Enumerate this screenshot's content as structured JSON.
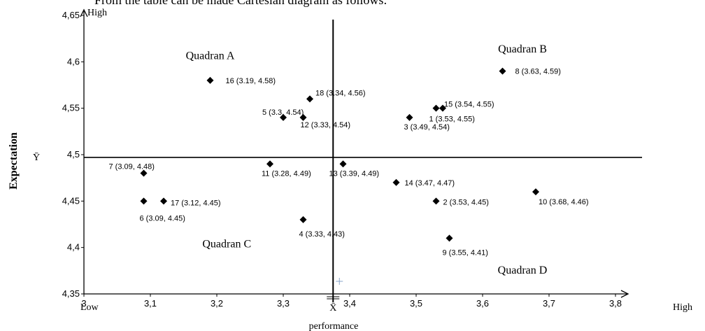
{
  "intro_text": "From the table can be made Cartesian diagram as follows:",
  "chart_data": {
    "type": "scatter",
    "title": "",
    "xlabel": "performance",
    "ylabel": "Expectation",
    "xlim": [
      3,
      3.8
    ],
    "ylim": [
      4.35,
      4.65
    ],
    "x_ticks": [
      "3",
      "3,1",
      "3,2",
      "3,3",
      "3,4",
      "3,5",
      "3,6",
      "3,7",
      "3,8"
    ],
    "y_ticks": [
      "4,35",
      "4,4",
      "4,45",
      "4,5",
      "4,55",
      "4,6",
      "4,65"
    ],
    "x_low_label": "Low",
    "x_high_label": "High",
    "y_high_label": "High",
    "x_mean_symbol": "X̄",
    "y_mean_symbol": "Ȳ",
    "mean_x": 3.375,
    "mean_y": 4.497,
    "quadrants": [
      {
        "label": "Quadran A",
        "x": 3.19,
        "y": 4.603
      },
      {
        "label": "Quadran B",
        "x": 3.66,
        "y": 4.61
      },
      {
        "label": "Quadran C",
        "x": 3.215,
        "y": 4.4
      },
      {
        "label": "Quadran D",
        "x": 3.66,
        "y": 4.372
      }
    ],
    "points": [
      {
        "id": "1",
        "x": 3.53,
        "y": 4.55,
        "label": "1 (3.53, 4.55)"
      },
      {
        "id": "2",
        "x": 3.53,
        "y": 4.45,
        "label": "2 (3.53, 4.45)"
      },
      {
        "id": "3",
        "x": 3.49,
        "y": 4.54,
        "label": "3 (3.49, 4.54)"
      },
      {
        "id": "4",
        "x": 3.33,
        "y": 4.43,
        "label": "4 (3.33, 4.43)"
      },
      {
        "id": "5",
        "x": 3.3,
        "y": 4.54,
        "label": "5 (3.3, 4.54)"
      },
      {
        "id": "6",
        "x": 3.09,
        "y": 4.45,
        "label": "6 (3.09, 4.45)"
      },
      {
        "id": "7",
        "x": 3.09,
        "y": 4.48,
        "label": "7 (3.09, 4.48)"
      },
      {
        "id": "8",
        "x": 3.63,
        "y": 4.59,
        "label": "8 (3.63, 4.59)"
      },
      {
        "id": "9",
        "x": 3.55,
        "y": 4.41,
        "label": "9 (3.55, 4.41)"
      },
      {
        "id": "10",
        "x": 3.68,
        "y": 4.46,
        "label": "10 (3.68, 4.46)"
      },
      {
        "id": "11",
        "x": 3.28,
        "y": 4.49,
        "label": "11 (3.28, 4.49)"
      },
      {
        "id": "12",
        "x": 3.33,
        "y": 4.54,
        "label": "12 (3.33, 4.54)"
      },
      {
        "id": "13",
        "x": 3.39,
        "y": 4.49,
        "label": "13 (3.39, 4.49)"
      },
      {
        "id": "14",
        "x": 3.47,
        "y": 4.47,
        "label": "14 (3.47, 4.47)"
      },
      {
        "id": "15",
        "x": 3.54,
        "y": 4.55,
        "label": "15 (3.54, 4.55)"
      },
      {
        "id": "16",
        "x": 3.19,
        "y": 4.58,
        "label": "16 (3.19, 4.58)"
      },
      {
        "id": "17",
        "x": 3.12,
        "y": 4.45,
        "label": "17 (3.12, 4.45)"
      },
      {
        "id": "18",
        "x": 3.34,
        "y": 4.56,
        "label": "18 (3.34, 4.56)"
      }
    ]
  }
}
